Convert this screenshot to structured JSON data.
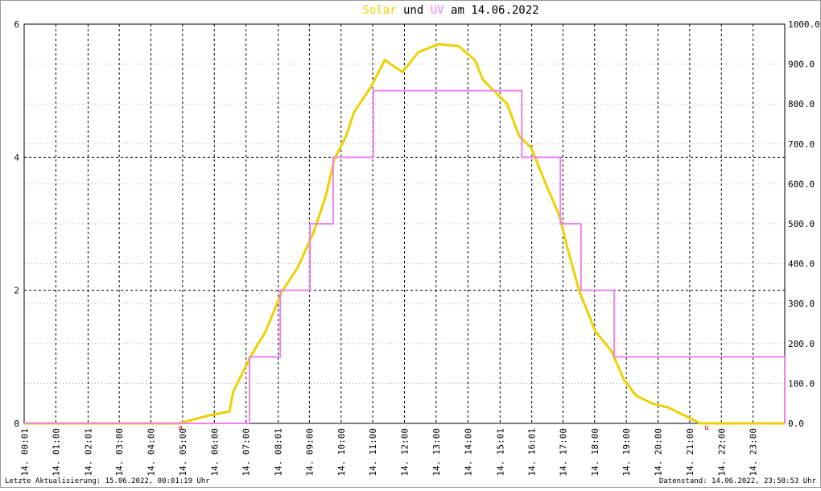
{
  "chart_data": {
    "type": "line",
    "title_join": "und",
    "title_date": "am 14.06.2022",
    "footer_left": "Letzte Aktualisierung: 15.06.2022, 00:01:19 Uhr",
    "footer_right": "Datenstand: 14.06.2022, 23:58:53 Uhr",
    "xlim": [
      0,
      24
    ],
    "xticks": [
      {
        "value": 0.0167,
        "label": "14. 00:01"
      },
      {
        "value": 1,
        "label": "14. 01:00"
      },
      {
        "value": 2.0167,
        "label": "14. 02:01"
      },
      {
        "value": 3,
        "label": "14. 03:00"
      },
      {
        "value": 4,
        "label": "14. 04:00"
      },
      {
        "value": 5,
        "label": "14. 05:00"
      },
      {
        "value": 6,
        "label": "14. 06:00"
      },
      {
        "value": 7,
        "label": "14. 07:00"
      },
      {
        "value": 8.0167,
        "label": "14. 08:01"
      },
      {
        "value": 9,
        "label": "14. 09:00"
      },
      {
        "value": 10,
        "label": "14. 10:00"
      },
      {
        "value": 11,
        "label": "14. 11:00"
      },
      {
        "value": 12,
        "label": "14. 12:00"
      },
      {
        "value": 13,
        "label": "14. 13:00"
      },
      {
        "value": 14,
        "label": "14. 14:00"
      },
      {
        "value": 15.0167,
        "label": "14. 15:01"
      },
      {
        "value": 16.0167,
        "label": "14. 16:01"
      },
      {
        "value": 17,
        "label": "14. 17:00"
      },
      {
        "value": 18,
        "label": "14. 18:00"
      },
      {
        "value": 19,
        "label": "14. 19:00"
      },
      {
        "value": 20,
        "label": "14. 20:00"
      },
      {
        "value": 21,
        "label": "14. 21:00"
      },
      {
        "value": 22,
        "label": "14. 22:00"
      },
      {
        "value": 23,
        "label": "14. 23:00"
      }
    ],
    "ylim": [
      0,
      6
    ],
    "yticks": [
      0,
      2,
      4,
      6
    ],
    "y2lim": [
      0,
      1000
    ],
    "y2ticks": [
      {
        "value": 0,
        "label": "0.0"
      },
      {
        "value": 100,
        "label": "100.0"
      },
      {
        "value": 200,
        "label": "200.0"
      },
      {
        "value": 300,
        "label": "300.0"
      },
      {
        "value": 400,
        "label": "400.0"
      },
      {
        "value": 500,
        "label": "500.0"
      },
      {
        "value": 600,
        "label": "600.0"
      },
      {
        "value": 700,
        "label": "700.0"
      },
      {
        "value": 800,
        "label": "800.0"
      },
      {
        "value": 900,
        "label": "900.0"
      },
      {
        "value": 1000,
        "label": "1000.0"
      }
    ],
    "grid": true,
    "series": [
      {
        "name": "Solar",
        "color": "#f0d000",
        "axis": "y2",
        "step": false,
        "x": [
          0,
          4.88,
          5.84,
          6.48,
          6.6,
          7.16,
          7.62,
          8.13,
          8.63,
          9.14,
          9.52,
          9.78,
          10.16,
          10.41,
          10.92,
          11.38,
          11.94,
          12.44,
          13.08,
          13.71,
          14.22,
          14.48,
          15.24,
          15.62,
          16.0,
          16.51,
          16.89,
          17.14,
          17.52,
          18.03,
          18.54,
          18.92,
          19.3,
          19.81,
          20.32,
          20.83,
          21.33,
          24
        ],
        "values": [
          0,
          0,
          20,
          30,
          80,
          170,
          230,
          330,
          390,
          480,
          570,
          660,
          720,
          780,
          840,
          910,
          880,
          930,
          950,
          945,
          910,
          860,
          800,
          720,
          690,
          590,
          520,
          440,
          330,
          230,
          180,
          110,
          70,
          50,
          40,
          20,
          0,
          0
        ]
      },
      {
        "name": "UV",
        "color": "#ee82ee",
        "axis": "y",
        "step": true,
        "x": [
          0,
          7.11,
          8.08,
          9.02,
          9.75,
          11.02,
          15.7,
          16.92,
          17.57,
          18.62,
          24
        ],
        "values": [
          0,
          1,
          2,
          3,
          4,
          5,
          4,
          3,
          2,
          1,
          0
        ]
      }
    ],
    "annotations": [
      {
        "text": "a",
        "x": 4.93
      },
      {
        "text": "u",
        "x": 21.54
      }
    ]
  }
}
